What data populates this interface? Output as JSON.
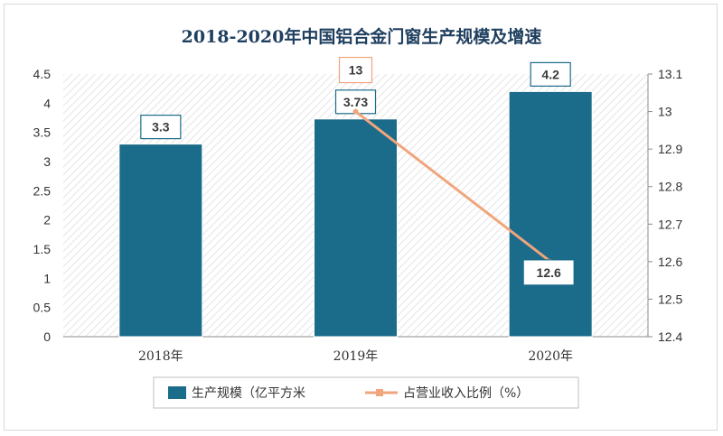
{
  "chart_data": {
    "type": "bar",
    "title": "2018-2020年中国铝合金门窗生产规模及增速",
    "categories": [
      "2018年",
      "2019年",
      "2020年"
    ],
    "series": [
      {
        "name": "生产规模（亿平方米",
        "type": "bar",
        "axis": "left",
        "values": [
          3.3,
          3.73,
          4.2
        ],
        "color": "#1b6b8a"
      },
      {
        "name": "占营业收入比例（%）",
        "type": "line",
        "axis": "right",
        "values": [
          null,
          13,
          12.6
        ],
        "color": "#f0a57c"
      }
    ],
    "y_left": {
      "min": 0,
      "max": 4.5,
      "ticks": [
        "0",
        "0.5",
        "1",
        "1.5",
        "2",
        "2.5",
        "3",
        "3.5",
        "4",
        "4.5"
      ]
    },
    "y_right": {
      "min": 12.4,
      "max": 13.1,
      "ticks": [
        "12.4",
        "12.5",
        "12.6",
        "12.7",
        "12.8",
        "12.9",
        "13",
        "13.1"
      ]
    },
    "bar_labels": [
      "3.3",
      "3.73",
      "4.2"
    ],
    "line_labels": [
      "",
      "13",
      "12.6"
    ],
    "legend_position": "bottom",
    "grid": false
  }
}
